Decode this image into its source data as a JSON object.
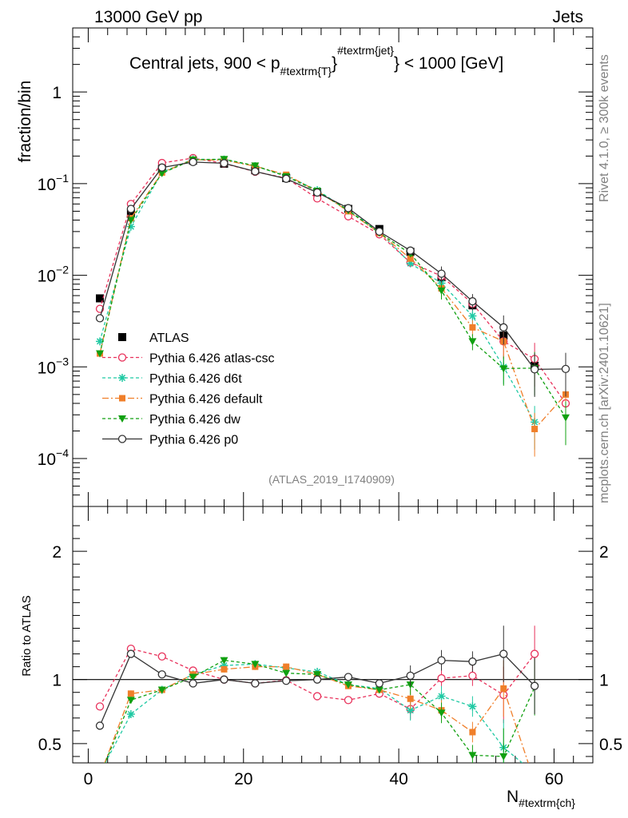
{
  "header": {
    "energy_label": "13000 GeV pp",
    "category_label": "Jets"
  },
  "side_labels": {
    "rivet": "Rivet 4.1.0, ≥ 300k events",
    "mcplots": "mcplots.cern.ch [arXiv:2401.10621]"
  },
  "colors": {
    "ATLAS": "#000000",
    "atlas_csc": "#e8315b",
    "d6t": "#1fc9a3",
    "default": "#f07f2a",
    "dw": "#10a010",
    "p0": "#333333"
  },
  "chart_data": [
    {
      "type": "line",
      "title": "Central jets, 900 < p_{#textrm{T}}^{#textrm{jet}} < 1000 [GeV]",
      "title_parts": {
        "prefix": "Central jets, 900 < p",
        "sub": "#textrm{T}",
        "brace": "}",
        "sup": "#textrm{jet}",
        "suffix": "} < 1000 [GeV]"
      },
      "ylabel": "fraction/bin",
      "yscale": "log",
      "ylim": [
        3e-05,
        5
      ],
      "xlim": [
        -2,
        65
      ],
      "y_ticks": [
        {
          "value": 1,
          "label": "1"
        },
        {
          "value": 0.1,
          "label": "10",
          "exp": "−1"
        },
        {
          "value": 0.01,
          "label": "10",
          "exp": "−2"
        },
        {
          "value": 0.001,
          "label": "10",
          "exp": "−3"
        },
        {
          "value": 0.0001,
          "label": "10",
          "exp": "−4"
        }
      ],
      "watermark": "(ATLAS_2019_I1740909)",
      "legend_position": "bottom-left",
      "x": [
        1.5,
        5.5,
        9.5,
        13.5,
        17.5,
        21.5,
        25.5,
        29.5,
        33.5,
        37.5,
        41.5,
        45.5,
        49.5,
        53.5,
        57.5,
        61.5
      ],
      "series": [
        {
          "key": "ATLAS",
          "name": "ATLAS",
          "style": "marker",
          "values": [
            0.0056,
            0.048,
            0.145,
            0.178,
            0.165,
            0.14,
            0.115,
            0.08,
            0.053,
            0.032,
            0.018,
            0.0095,
            0.0047,
            0.0022,
            0.00103,
            null
          ]
        },
        {
          "key": "atlas_csc",
          "name": "Pythia 6.426 atlas-csc",
          "style": "open-circle",
          "values": [
            0.0043,
            0.06,
            0.168,
            0.19,
            0.166,
            0.135,
            0.115,
            0.069,
            0.044,
            0.028,
            0.0138,
            0.0098,
            0.0049,
            0.0019,
            0.00122,
            0.0004
          ]
        },
        {
          "key": "d6t",
          "name": "Pythia 6.426 d6t",
          "style": "star",
          "values": [
            0.0019,
            0.034,
            0.133,
            0.185,
            0.183,
            0.155,
            0.122,
            0.085,
            0.051,
            0.03,
            0.0135,
            0.0082,
            0.0036,
            0.001,
            0.00025,
            null
          ]
        },
        {
          "key": "default",
          "name": "Pythia 6.426 default",
          "style": "square",
          "values": [
            0.0014,
            0.042,
            0.132,
            0.183,
            0.18,
            0.155,
            0.125,
            0.083,
            0.05,
            0.029,
            0.0152,
            0.0072,
            0.0027,
            0.0019,
            0.00021,
            0.0005
          ]
        },
        {
          "key": "dw",
          "name": "Pythia 6.426 dw",
          "style": "triangle-down",
          "values": [
            0.0014,
            0.04,
            0.13,
            0.182,
            0.185,
            0.157,
            0.12,
            0.083,
            0.051,
            0.029,
            0.0172,
            0.0068,
            0.0019,
            0.00096,
            0.00097,
            0.00028
          ]
        },
        {
          "key": "p0",
          "name": "Pythia 6.426 p0",
          "style": "open-circle-line",
          "values": [
            0.0034,
            0.053,
            0.15,
            0.172,
            0.167,
            0.136,
            0.113,
            0.08,
            0.054,
            0.03,
            0.0186,
            0.0104,
            0.0052,
            0.0027,
            0.00094,
            0.00095
          ]
        }
      ]
    },
    {
      "type": "line",
      "ylabel": "Ratio to ATLAS",
      "xlabel": "N",
      "xlabel_sub": "#textrm{ch}",
      "xlim": [
        -2,
        65
      ],
      "ylim": [
        0.35,
        2.35
      ],
      "x_ticks": [
        0,
        20,
        40,
        60
      ],
      "y_ticks": [
        0.5,
        1,
        2
      ],
      "y_tick_labels": [
        "0.5",
        "1",
        "2"
      ],
      "x_tick_labels": [
        "0",
        "20",
        "40",
        "60"
      ],
      "reference_line": 1,
      "x": [
        1.5,
        5.5,
        9.5,
        13.5,
        17.5,
        21.5,
        25.5,
        29.5,
        33.5,
        37.5,
        41.5,
        45.5,
        49.5,
        53.5,
        57.5
      ],
      "series": [
        {
          "key": "atlas_csc",
          "name": "Pythia 6.426 atlas-csc",
          "values": [
            0.79,
            1.24,
            1.18,
            1.07,
            1.0,
            0.97,
            0.995,
            0.87,
            0.84,
            0.89,
            0.77,
            1.01,
            1.03,
            0.88,
            1.2
          ]
        },
        {
          "key": "d6t",
          "name": "Pythia 6.426 d6t",
          "values": [
            0.27,
            0.73,
            0.92,
            1.04,
            1.11,
            1.12,
            1.09,
            1.06,
            0.96,
            0.93,
            0.76,
            0.87,
            0.79,
            0.47,
            0.27
          ]
        },
        {
          "key": "default",
          "name": "Pythia 6.426 default",
          "values": [
            0.25,
            0.89,
            0.92,
            1.04,
            1.08,
            1.1,
            1.1,
            1.04,
            0.95,
            0.92,
            0.85,
            0.76,
            0.59,
            0.93,
            0.2
          ]
        },
        {
          "key": "dw",
          "name": "Pythia 6.426 dw",
          "values": [
            0.25,
            0.84,
            0.92,
            1.02,
            1.15,
            1.12,
            1.05,
            1.04,
            0.96,
            0.92,
            0.96,
            0.74,
            0.41,
            0.4,
            0.94
          ]
        },
        {
          "key": "p0",
          "name": "Pythia 6.426 p0",
          "values": [
            0.64,
            1.2,
            1.04,
            0.97,
            1.0,
            0.97,
            0.99,
            1.0,
            1.02,
            0.97,
            1.03,
            1.15,
            1.14,
            1.2,
            0.95
          ]
        }
      ]
    }
  ]
}
